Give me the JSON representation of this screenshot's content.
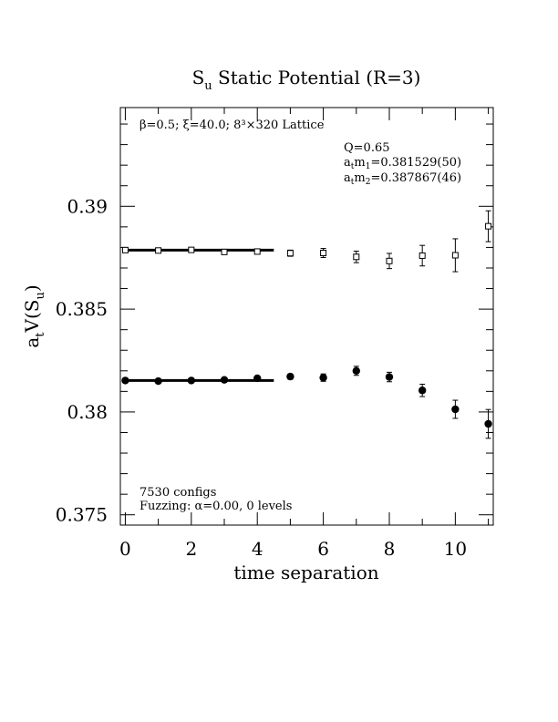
{
  "chart_data": {
    "type": "scatter",
    "title": {
      "prefix": "S",
      "sub": "u",
      "rest": " Static Potential (R=3)"
    },
    "xlabel": "time separation",
    "ylabel": {
      "a": "a",
      "a_sub": "t",
      "mid": "V(S",
      "s_sub": "u",
      "end": ")"
    },
    "xlim": [
      -0.15,
      11.15
    ],
    "ylim": [
      0.3745,
      0.3948
    ],
    "x_ticks": [
      "0",
      "2",
      "4",
      "6",
      "8",
      "10"
    ],
    "y_ticks": [
      "0.375",
      "0.38",
      "0.385",
      "0.39"
    ],
    "lattice_info": "β=0.5; ξ=40.0; 8³×320 Lattice",
    "fit_info": {
      "q": "Q=0.65",
      "m1": {
        "a": "a",
        "a_sub": "t",
        "m": "m",
        "m_sub": "1",
        "value": "=0.381529(50)"
      },
      "m2": {
        "a": "a",
        "a_sub": "t",
        "m": "m",
        "m_sub": "2",
        "value": "=0.387867(46)"
      }
    },
    "configs": "7530 configs",
    "fuzzing": "Fuzzing: α=0.00, 0 levels",
    "series": [
      {
        "marker": "filled-circle",
        "x": [
          0,
          1,
          2,
          3,
          4,
          5,
          6,
          7,
          8,
          9,
          10,
          11
        ],
        "y": [
          0.38153,
          0.3815,
          0.38153,
          0.38156,
          0.38164,
          0.38172,
          0.38167,
          0.382,
          0.3817,
          0.38105,
          0.38013,
          0.37942
        ],
        "err": [
          5e-05,
          5e-05,
          6e-05,
          7e-05,
          8e-05,
          0.00012,
          0.00018,
          0.00022,
          0.00023,
          0.0003,
          0.00044,
          0.0007
        ],
        "fit": {
          "value": 0.381529,
          "x_from": -0.05,
          "x_to": 4.5
        }
      },
      {
        "marker": "open-square",
        "x": [
          0,
          1,
          2,
          3,
          4,
          5,
          6,
          7,
          8,
          9,
          10,
          11
        ],
        "y": [
          0.38787,
          0.38785,
          0.38788,
          0.38778,
          0.3878,
          0.38772,
          0.38773,
          0.38754,
          0.38734,
          0.3876,
          0.38762,
          0.38903
        ],
        "err": [
          5e-05,
          5e-05,
          6e-05,
          8e-05,
          0.0001,
          0.00015,
          0.00022,
          0.00028,
          0.00037,
          0.0005,
          0.0008,
          0.00075
        ],
        "fit": {
          "value": 0.387867,
          "x_from": -0.05,
          "x_to": 4.5
        }
      }
    ]
  }
}
